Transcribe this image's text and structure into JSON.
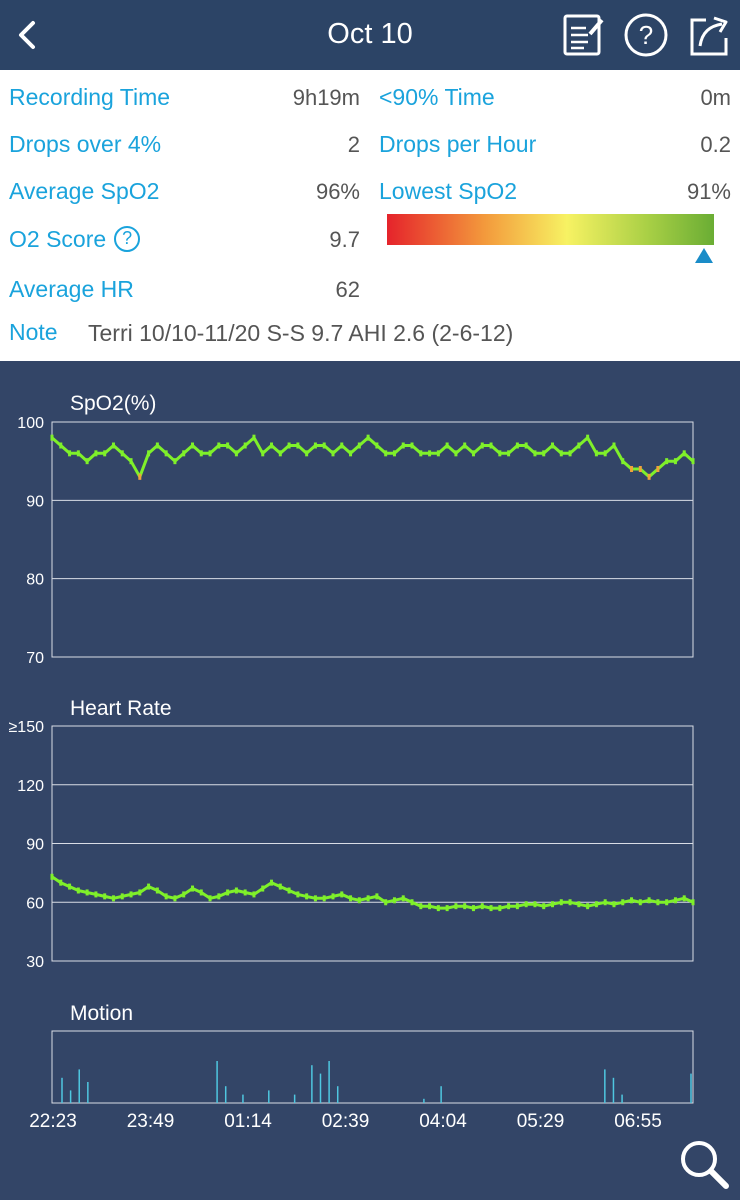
{
  "header": {
    "title": "Oct 10",
    "back_icon": "chevron-left-icon",
    "actions": [
      "edit-note-icon",
      "help-icon",
      "share-icon"
    ],
    "bg_color": "#2c4466"
  },
  "stats": {
    "recording_time": {
      "label": "Recording Time",
      "value": "9h19m"
    },
    "below90": {
      "label": "<90% Time",
      "value": "0m"
    },
    "drops_over": {
      "label": "Drops over 4%",
      "value": "2"
    },
    "drops_per_hour": {
      "label": "Drops per Hour",
      "value": "0.2"
    },
    "avg_spo2": {
      "label": "Average SpO2",
      "value": "96%"
    },
    "lowest_spo2": {
      "label": "Lowest SpO2",
      "value": "91%"
    },
    "o2_score": {
      "label": "O2 Score",
      "value": "9.7",
      "icon": "help-icon"
    },
    "avg_hr": {
      "label": "Average HR",
      "value": "62"
    },
    "note": {
      "label": "Note",
      "value": "Terri 10/10-11/20 S-S 9.7 AHI 2.6 (2-6-12)"
    },
    "score_gauge": {
      "value": 9.7,
      "min": 0,
      "max": 10
    },
    "label_color": "#1aa3dc"
  },
  "chart_data": [
    {
      "type": "line",
      "title": "SpO2(%)",
      "ylim": [
        70,
        100
      ],
      "yticks": [
        "100",
        "90",
        "80",
        "70"
      ],
      "x_labels": [
        "22:23",
        "23:49",
        "01:14",
        "02:39",
        "04:04",
        "05:29",
        "06:55"
      ],
      "grid": true,
      "series": [
        {
          "values": [
            98,
            97,
            96,
            96,
            95,
            96,
            96,
            97,
            96,
            95,
            93,
            96,
            97,
            96,
            95,
            96,
            97,
            96,
            96,
            97,
            97,
            96,
            97,
            98,
            96,
            97,
            96,
            97,
            97,
            96,
            97,
            97,
            96,
            97,
            96,
            97,
            98,
            97,
            96,
            96,
            97,
            97,
            96,
            96,
            96,
            97,
            96,
            97,
            96,
            97,
            97,
            96,
            96,
            97,
            97,
            96,
            96,
            97,
            96,
            96,
            97,
            98,
            96,
            96,
            97,
            95,
            94,
            94,
            93,
            94,
            95,
            95,
            96,
            95
          ]
        }
      ]
    },
    {
      "type": "line",
      "title": "Heart Rate",
      "ylim": [
        30,
        150
      ],
      "yticks": [
        "≥150",
        "120",
        "90",
        "60",
        "30"
      ],
      "x_labels": [
        "22:23",
        "23:49",
        "01:14",
        "02:39",
        "04:04",
        "05:29",
        "06:55"
      ],
      "grid": true,
      "series": [
        {
          "values": [
            73,
            70,
            68,
            66,
            65,
            64,
            63,
            62,
            63,
            64,
            65,
            68,
            66,
            63,
            62,
            64,
            67,
            65,
            62,
            63,
            65,
            66,
            65,
            64,
            67,
            70,
            68,
            66,
            64,
            63,
            62,
            62,
            63,
            64,
            62,
            61,
            62,
            63,
            60,
            61,
            62,
            60,
            58,
            58,
            57,
            57,
            58,
            58,
            57,
            58,
            57,
            57,
            58,
            58,
            59,
            59,
            58,
            59,
            60,
            60,
            59,
            58,
            59,
            60,
            59,
            60,
            61,
            60,
            61,
            60,
            60,
            61,
            62,
            60
          ]
        }
      ]
    },
    {
      "type": "bar",
      "title": "Motion",
      "x_labels": [
        "22:23",
        "23:49",
        "01:14",
        "02:39",
        "04:04",
        "05:29",
        "06:55"
      ],
      "grid": false,
      "series": [
        {
          "values": [
            0.6,
            0.3,
            0.8,
            0.5,
            0,
            0,
            0,
            0,
            0,
            0,
            0,
            0,
            0,
            0,
            0,
            0,
            0,
            0,
            1.0,
            0.4,
            0,
            0.2,
            0,
            0,
            0.3,
            0,
            0,
            0.2,
            0,
            0.9,
            0.7,
            1.0,
            0.4,
            0,
            0,
            0,
            0,
            0,
            0,
            0,
            0,
            0,
            0.1,
            0,
            0.4,
            0,
            0,
            0,
            0,
            0,
            0,
            0,
            0,
            0,
            0,
            0,
            0,
            0,
            0,
            0,
            0,
            0,
            0,
            0.8,
            0.6,
            0.2,
            0,
            0,
            0,
            0,
            0,
            0,
            0,
            0.7
          ]
        }
      ]
    }
  ],
  "zoom_icon": "magnifier-icon",
  "colors": {
    "chart_bg": "#334567",
    "line": "#7ff02a",
    "warn": "#f0a33a"
  }
}
